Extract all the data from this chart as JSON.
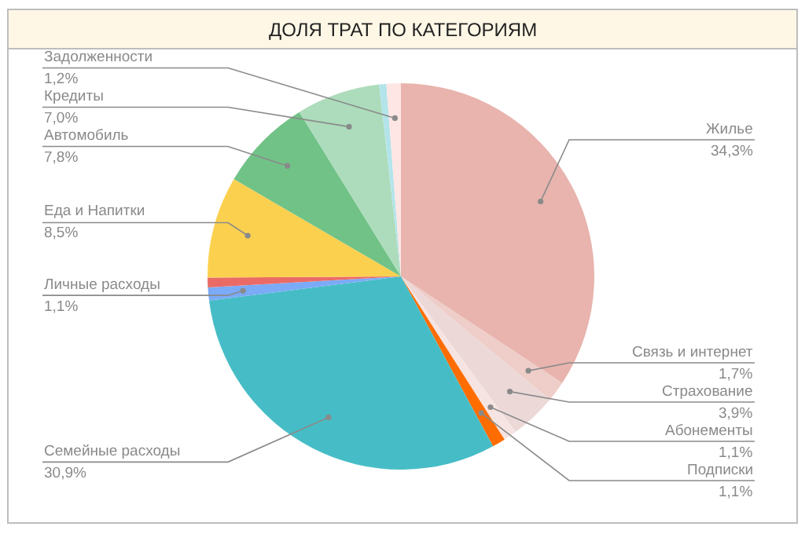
{
  "chart_data": {
    "type": "pie",
    "title": "ДОЛЯ ТРАТ ПО КАТЕГОРИЯМ",
    "categories": [
      "Жилье",
      "Связь и интернет",
      "Страхование",
      "Абонементы",
      "Подписки",
      "Семейные расходы",
      "Личные расходы",
      null,
      "Еда и Напитки",
      "Автомобиль",
      "Кредиты",
      null,
      "Задолженности"
    ],
    "values": [
      34.3,
      1.7,
      3.9,
      1.1,
      1.1,
      30.9,
      1.1,
      0.8,
      8.5,
      7.8,
      7.0,
      0.6,
      1.2
    ],
    "value_labels": [
      "34,3%",
      "1,7%",
      "3,9%",
      "1,1%",
      "1,1%",
      "30,9%",
      "1,1%",
      null,
      "8,5%",
      "7,8%",
      "7,0%",
      null,
      "1,2%"
    ],
    "colors": [
      "#e8b4ad",
      "#efcdc9",
      "#ecd9d7",
      "#f6e4e2",
      "#ff6d01",
      "#46bdc6",
      "#7baaf7",
      "#ea6b66",
      "#fcd04f",
      "#71c287",
      "#acdcbb",
      "#b3e4ea",
      "#fde6e4"
    ]
  }
}
